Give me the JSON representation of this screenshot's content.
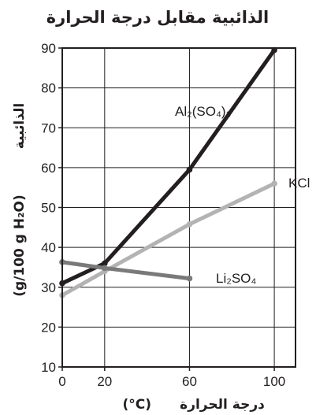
{
  "chart_data": {
    "type": "line",
    "title": "الذائبية مقابل درجة الحرارة",
    "xlabel": "درجة الحرارة",
    "xlabel_unit": "(°C)",
    "ylabel": "الذائبية",
    "ylabel_unit": "(g/100 g H₂O)",
    "xlim": [
      0,
      110
    ],
    "ylim": [
      10,
      90
    ],
    "x_ticks": [
      0,
      20,
      60,
      100
    ],
    "y_ticks": [
      10,
      20,
      30,
      40,
      50,
      60,
      70,
      80,
      90
    ],
    "grid": true,
    "series": [
      {
        "name": "Al₂(SO₄)₃",
        "color": "#231f20",
        "points": [
          [
            0,
            31
          ],
          [
            20,
            36
          ],
          [
            60,
            59.5
          ],
          [
            100,
            89.5
          ]
        ]
      },
      {
        "name": "KCl",
        "color": "#b3b3b3",
        "points": [
          [
            0,
            28
          ],
          [
            20,
            34
          ],
          [
            60,
            45.8
          ],
          [
            100,
            56
          ]
        ]
      },
      {
        "name": "Li₂SO₄",
        "color": "#7a7a7a",
        "points": [
          [
            0,
            36.3
          ],
          [
            20,
            34.8
          ],
          [
            60,
            32.2
          ]
        ]
      }
    ]
  }
}
